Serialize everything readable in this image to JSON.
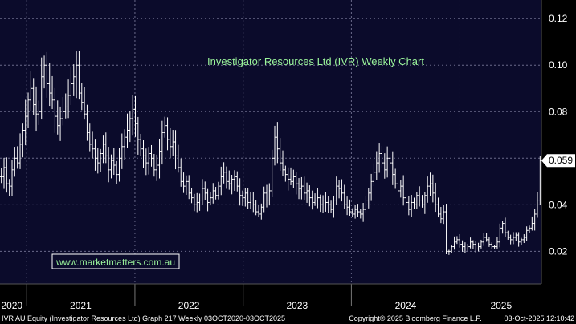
{
  "chart_data": {
    "type": "ohlc",
    "title": "Investigator Resources Ltd (IVR) Weekly Chart",
    "watermark": "www.marketmatters.com.au",
    "ylim": [
      0.006,
      0.128
    ],
    "ytick_values": [
      0.02,
      0.04,
      0.06,
      0.08,
      0.1,
      0.12
    ],
    "yticks": [
      "0.02",
      "0.04",
      "0.06",
      "0.08",
      "0.10",
      "0.12"
    ],
    "xlim": [
      "2020-10-03",
      "2025-10-03"
    ],
    "year_boundaries": [
      "2021-01-01",
      "2022-01-01",
      "2023-01-01",
      "2024-01-01",
      "2025-01-01"
    ],
    "xticks": [
      {
        "label": "2020",
        "date": "2020-11-12"
      },
      {
        "label": "2021",
        "date": "2021-07-02"
      },
      {
        "label": "2022",
        "date": "2022-07-02"
      },
      {
        "label": "2023",
        "date": "2023-07-02"
      },
      {
        "label": "2024",
        "date": "2024-07-02"
      },
      {
        "label": "2025",
        "date": "2025-05-20"
      }
    ],
    "last_price": {
      "label": "0.059",
      "value": 0.059
    },
    "grid": true,
    "colors": {
      "background": "#000000",
      "plot_background": "#0b0b2b",
      "bars": "#ffffff",
      "grid": "#6a6a8a",
      "title": "#9bf59b",
      "watermark_border": "#ffffff"
    },
    "series": [
      {
        "closes": [
          0.052,
          0.056,
          0.049,
          0.048,
          0.055,
          0.06,
          0.058,
          0.066,
          0.072,
          0.078,
          0.085,
          0.09,
          0.083,
          0.079,
          0.08,
          0.095,
          0.1,
          0.092,
          0.088,
          0.085,
          0.078,
          0.074,
          0.077,
          0.08,
          0.082,
          0.087,
          0.092,
          0.095,
          0.1,
          0.088,
          0.084,
          0.079,
          0.071,
          0.066,
          0.064,
          0.06,
          0.058,
          0.062,
          0.066,
          0.061,
          0.055,
          0.059,
          0.057,
          0.053,
          0.06,
          0.065,
          0.069,
          0.072,
          0.077,
          0.081,
          0.075,
          0.068,
          0.064,
          0.061,
          0.058,
          0.062,
          0.06,
          0.055,
          0.057,
          0.063,
          0.071,
          0.074,
          0.068,
          0.065,
          0.067,
          0.061,
          0.056,
          0.05,
          0.048,
          0.05,
          0.045,
          0.043,
          0.04,
          0.041,
          0.042,
          0.047,
          0.045,
          0.041,
          0.043,
          0.046,
          0.044,
          0.048,
          0.052,
          0.054,
          0.05,
          0.049,
          0.051,
          0.052,
          0.048,
          0.044,
          0.043,
          0.045,
          0.041,
          0.042,
          0.04,
          0.037,
          0.036,
          0.039,
          0.045,
          0.042,
          0.046,
          0.06,
          0.069,
          0.064,
          0.058,
          0.055,
          0.053,
          0.051,
          0.05,
          0.052,
          0.049,
          0.047,
          0.048,
          0.045,
          0.046,
          0.043,
          0.041,
          0.042,
          0.043,
          0.04,
          0.042,
          0.041,
          0.04,
          0.038,
          0.042,
          0.048,
          0.047,
          0.045,
          0.04,
          0.039,
          0.037,
          0.036,
          0.038,
          0.037,
          0.036,
          0.038,
          0.042,
          0.045,
          0.05,
          0.054,
          0.058,
          0.062,
          0.058,
          0.055,
          0.06,
          0.058,
          0.053,
          0.049,
          0.046,
          0.048,
          0.043,
          0.041,
          0.038,
          0.041,
          0.04,
          0.044,
          0.042,
          0.04,
          0.044,
          0.048,
          0.049,
          0.045,
          0.04,
          0.036,
          0.034,
          0.037,
          0.02,
          0.02,
          0.022,
          0.024,
          0.025,
          0.023,
          0.022,
          0.021,
          0.022,
          0.024,
          0.023,
          0.021,
          0.022,
          0.024,
          0.026,
          0.025,
          0.023,
          0.022,
          0.022,
          0.024,
          0.03,
          0.032,
          0.028,
          0.026,
          0.025,
          0.026,
          0.027,
          0.024,
          0.025,
          0.026,
          0.029,
          0.03,
          0.032,
          0.036,
          0.042,
          0.059
        ]
      }
    ],
    "footer": {
      "left": "IVR AU Equity (Investigator Resources Ltd) Graph 217 Weekly 03OCT2020-03OCT2025",
      "middle": "Copyright® 2025 Bloomberg Finance L.P.",
      "right": "03-Oct-2025 12:10:42"
    }
  }
}
